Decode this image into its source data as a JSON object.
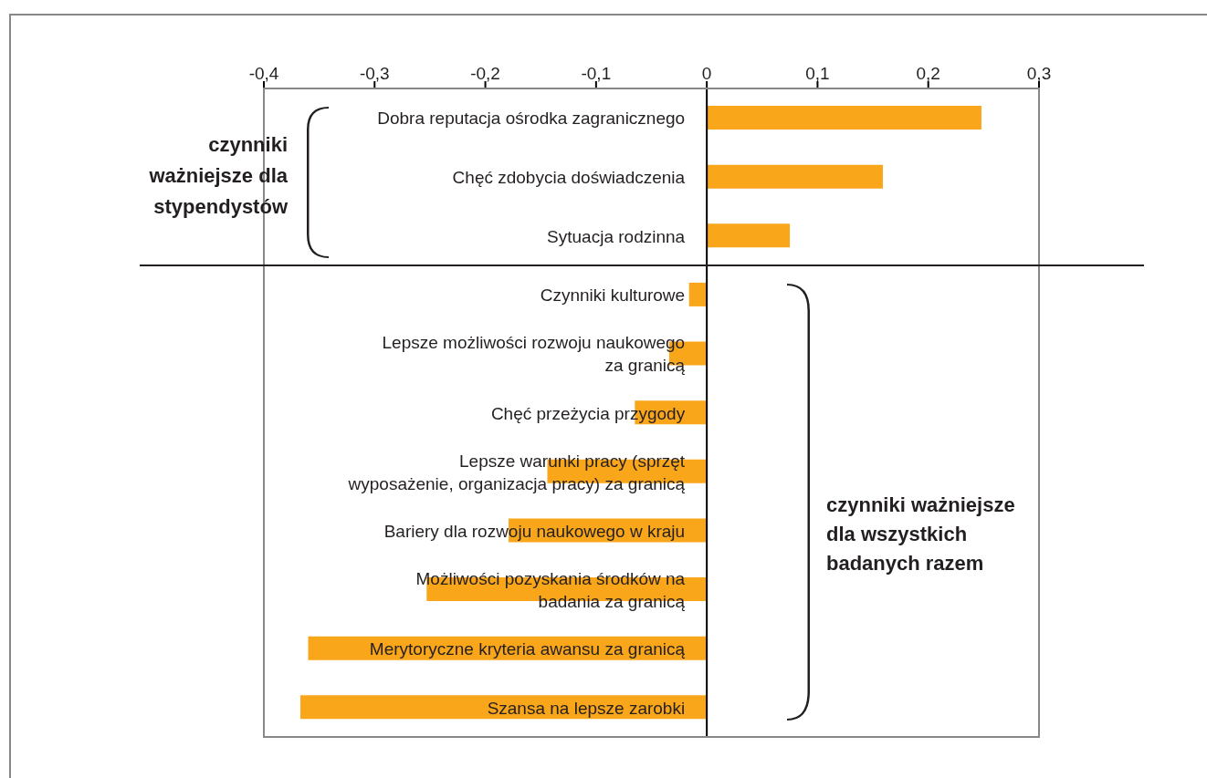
{
  "chart_data": {
    "type": "bar",
    "orientation": "horizontal",
    "categories": [
      "Dobra reputacja ośrodka zagranicznego",
      "Chęć zdobycia doświadczenia",
      "Sytuacja rodzinna",
      "Czynniki kulturowe",
      "Lepsze możliwości rozwoju naukowego za granicą",
      "Chęć przeżycia przygody",
      "Lepsze warunki pracy (sprzęt wyposażenie, organizacja pracy) za granicą",
      "Bariery dla rozwoju naukowego w kraju",
      "Możliwości pozyskania środków na badania za granicą",
      "Merytoryczne kryteria awansu za granicą",
      "Szansa na lepsze zarobki"
    ],
    "values": [
      0.248,
      0.159,
      0.075,
      -0.016,
      -0.034,
      -0.065,
      -0.144,
      -0.179,
      -0.253,
      -0.36,
      -0.367
    ],
    "color": "#f9a61a",
    "xlim": [
      -0.4,
      0.3
    ],
    "xticks": [
      {
        "value": -0.4,
        "label": "-0,4"
      },
      {
        "value": -0.3,
        "label": "-0,3"
      },
      {
        "value": -0.2,
        "label": "-0,2"
      },
      {
        "value": -0.1,
        "label": "-0,1"
      },
      0,
      {
        "value": 0.1,
        "label": "0,1"
      },
      {
        "value": 0.2,
        "label": "0,2"
      },
      {
        "value": 0.3,
        "label": "0,3"
      }
    ],
    "annotations": [
      "czynniki ważniejsze dla stypendystów",
      "czynniki ważniejsze dla wszystkich badanych razem"
    ]
  }
}
